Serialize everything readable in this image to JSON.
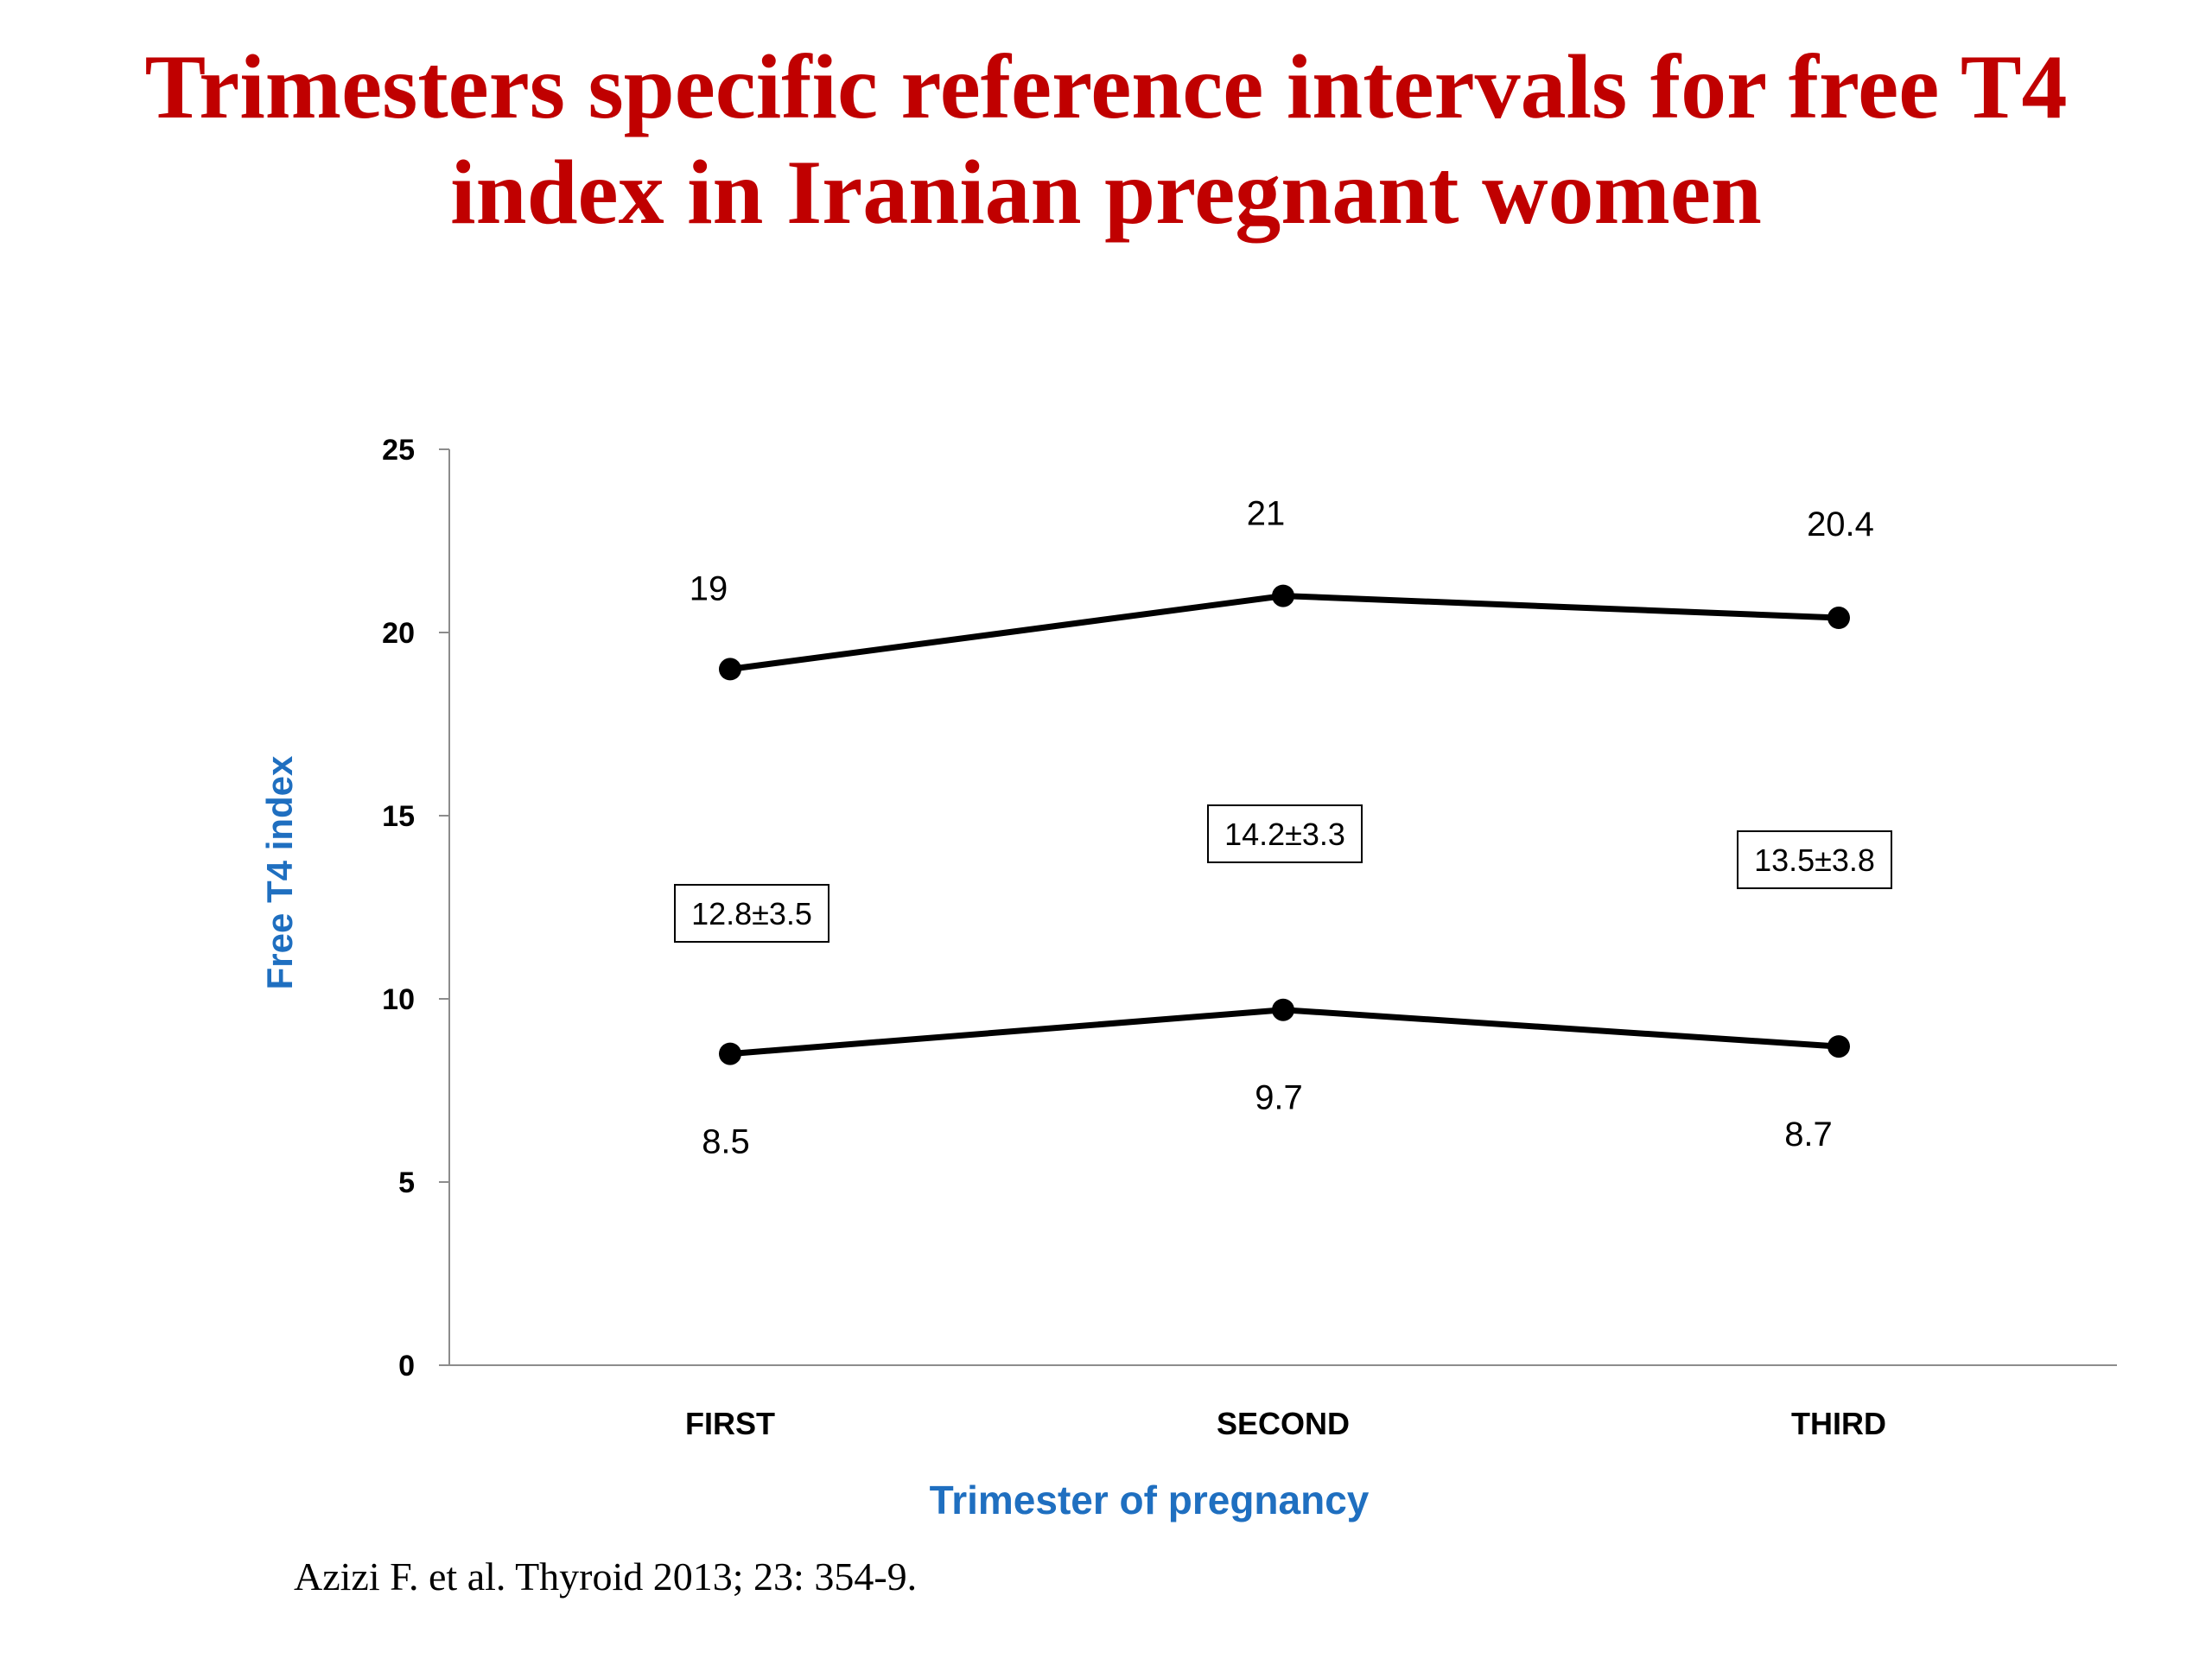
{
  "slide": {
    "title_line1": "Trimesters specific reference intervals for free T4",
    "title_line2": "index in Iranian pregnant women",
    "citation": "Azizi F. et al. Thyroid 2013; 23: 354-9.",
    "title_color": "#c00000",
    "axis_title_color": "#1f6fc0"
  },
  "chart_data": {
    "type": "line",
    "categories": [
      "FIRST",
      "SECOND",
      "THIRD"
    ],
    "series": [
      {
        "values": [
          19,
          21,
          20.4
        ],
        "labels": [
          "19",
          "21",
          "20.4"
        ]
      },
      {
        "values": [
          8.5,
          9.7,
          8.7
        ],
        "labels": [
          "8.5",
          "9.7",
          "8.7"
        ]
      }
    ],
    "mean_sd_labels": [
      "12.8±3.5",
      "14.2±3.3",
      "13.5±3.8"
    ],
    "xlabel": "Trimester of pregnancy",
    "ylabel": "Free T4 index",
    "ylim": [
      0,
      25
    ],
    "yticks": [
      0,
      5,
      10,
      15,
      20,
      25
    ],
    "grid": false,
    "line_color": "#000000"
  }
}
